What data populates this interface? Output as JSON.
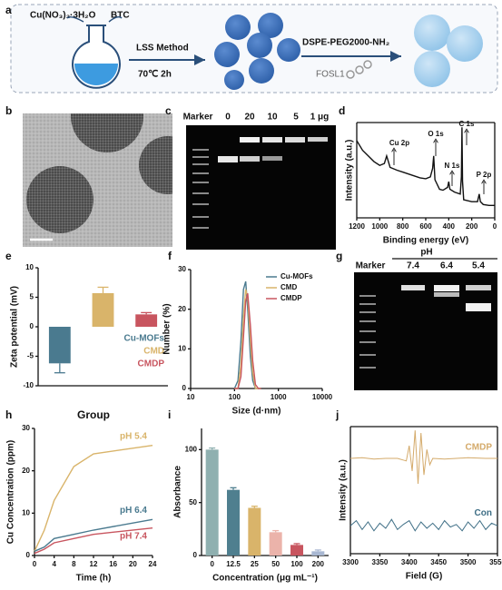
{
  "panel_labels": [
    "a",
    "b",
    "c",
    "d",
    "e",
    "f",
    "g",
    "h",
    "i",
    "j"
  ],
  "schematic": {
    "reagent": "Cu(NO₃)₂·3H₂O",
    "linker": "BTC",
    "step1": "LSS Method",
    "conditions": "70℃   2h",
    "step2": "DSPE-PEG2000-NH₂",
    "cargo": "FOSL1"
  },
  "gel_c": {
    "lanes": [
      "Marker",
      "0",
      "20",
      "10",
      "5",
      "1 μg"
    ]
  },
  "gel_g": {
    "header": "pH",
    "lanes": [
      "Marker",
      "7.4",
      "6.4",
      "5.4"
    ]
  },
  "chart_data": [
    {
      "type": "line",
      "xlabel": "Binding energy (eV)",
      "ylabel": "Intensity (a.u.)",
      "frame": true,
      "xlim": [
        1200,
        0
      ],
      "xticks": [
        1200,
        1000,
        800,
        600,
        400,
        200,
        0
      ],
      "ylim": [
        0,
        10
      ],
      "annotations": [
        "Cu 2p",
        "O 1s",
        "C 1s",
        "N 1s",
        "P 2p"
      ],
      "x": [
        1200,
        1150,
        1100,
        1050,
        1000,
        960,
        940,
        930,
        910,
        850,
        800,
        750,
        700,
        650,
        600,
        560,
        540,
        531,
        520,
        480,
        450,
        410,
        400,
        390,
        350,
        300,
        290,
        285,
        280,
        270,
        200,
        150,
        135,
        125,
        100,
        50,
        0
      ],
      "series": [
        {
          "color": "#111111",
          "values": [
            8.1,
            7.1,
            6.5,
            5.9,
            5.5,
            5.7,
            6.5,
            6.1,
            5.3,
            5.0,
            4.8,
            4.6,
            4.4,
            4.2,
            4.1,
            4.3,
            5.2,
            6.5,
            4.0,
            3.0,
            2.9,
            3.2,
            3.8,
            3.0,
            2.7,
            2.5,
            4.3,
            9.5,
            3.8,
            1.9,
            1.7,
            1.7,
            2.5,
            1.7,
            1.4,
            1.3,
            1.3
          ]
        }
      ]
    },
    {
      "type": "bar",
      "ylabel": "Zeta potential (mV)",
      "category_labels": "legend",
      "categories": [
        "Cu-MOFs",
        "CMD",
        "CMDP"
      ],
      "values": [
        -6.2,
        5.7,
        2.1
      ],
      "errors": [
        1.6,
        1.0,
        0.3
      ],
      "colors": [
        "#4a7a8f",
        "#d9b46a",
        "#c8555f"
      ],
      "ylim": [
        -10,
        10
      ],
      "yticks": [
        -10,
        -5,
        0,
        5,
        10
      ]
    },
    {
      "type": "line",
      "xlabel": "Size (d·nm)",
      "ylabel": "Number (%)",
      "xlog": true,
      "legend": "upper right",
      "xlim": [
        10,
        10000
      ],
      "xticks": [
        10,
        100,
        1000,
        10000
      ],
      "ylim": [
        0,
        30
      ],
      "yticks": [
        0,
        10,
        20,
        30
      ],
      "x": [
        100,
        120,
        140,
        160,
        180,
        200,
        230,
        260,
        300,
        350,
        400
      ],
      "series": [
        {
          "name": "Cu-MOFs",
          "color": "#4a7a8f",
          "values": [
            0,
            2,
            12,
            25,
            27,
            20,
            8,
            2,
            0,
            0,
            0
          ]
        },
        {
          "name": "CMD",
          "color": "#d9b46a",
          "values": [
            0,
            0,
            6,
            18,
            25,
            23,
            12,
            4,
            0,
            0,
            0
          ]
        },
        {
          "name": "CMDP",
          "color": "#c8555f",
          "values": [
            0,
            0,
            3,
            13,
            22,
            24,
            16,
            7,
            1,
            0,
            0
          ]
        }
      ]
    },
    {
      "type": "line",
      "title": "Group",
      "xlabel": "Time (h)",
      "ylabel": "Cu Concentration (ppm)",
      "legend": "inline",
      "xlim": [
        0,
        24
      ],
      "xticks": [
        0,
        4,
        8,
        12,
        16,
        20,
        24
      ],
      "ylim": [
        0,
        30
      ],
      "yticks": [
        0,
        10,
        20,
        30
      ],
      "x": [
        0,
        2,
        4,
        8,
        12,
        24
      ],
      "series": [
        {
          "name": "pH 5.4",
          "color": "#d9b46a",
          "values": [
            1,
            6,
            13,
            21,
            24,
            26
          ]
        },
        {
          "name": "pH 6.4",
          "color": "#4a7a8f",
          "values": [
            1,
            2,
            4,
            5,
            6,
            8.5
          ]
        },
        {
          "name": "pH 7.4",
          "color": "#c8555f",
          "values": [
            0.5,
            1.5,
            3,
            4,
            5,
            6.5
          ]
        }
      ]
    },
    {
      "type": "bar",
      "xlabel": "Concentration (μg mL⁻¹)",
      "ylabel": "Absorbance",
      "category_labels": "axis",
      "categories": [
        "0",
        "12.5",
        "25",
        "50",
        "100",
        "200"
      ],
      "values": [
        100,
        62,
        45,
        22,
        10,
        4
      ],
      "errors": [
        1.5,
        2,
        1.5,
        1.5,
        1.2,
        1.2
      ],
      "colors": [
        "#8fb0b0",
        "#4f7f8f",
        "#d9b46a",
        "#ebb3aa",
        "#c8555f",
        "#a9b8d2"
      ],
      "ylim": [
        0,
        120
      ],
      "yticks": [
        0,
        50,
        100
      ]
    },
    {
      "type": "line",
      "xlabel": "Field (G)",
      "ylabel": "Intensity (a.u.)",
      "frame": true,
      "legend": "inline",
      "xlim": [
        3300,
        3550
      ],
      "xticks": [
        3300,
        3350,
        3400,
        3450,
        3500,
        3550
      ],
      "ylim": [
        0,
        10
      ],
      "series": [
        {
          "name": "CMDP",
          "color": "#d4aa6a",
          "x": [
            3300,
            3320,
            3340,
            3360,
            3380,
            3395,
            3400,
            3405,
            3410,
            3415,
            3420,
            3425,
            3430,
            3435,
            3440,
            3460,
            3500,
            3530,
            3550
          ],
          "values": [
            7.5,
            7.55,
            7.45,
            7.5,
            7.5,
            7.3,
            8.5,
            6.5,
            9.7,
            5.5,
            9.5,
            6.2,
            8.2,
            7.0,
            7.5,
            7.45,
            7.55,
            7.5,
            7.5
          ]
        },
        {
          "name": "Con",
          "color": "#3f6f86",
          "x": [
            3300,
            3310,
            3320,
            3330,
            3340,
            3350,
            3360,
            3370,
            3380,
            3390,
            3400,
            3410,
            3420,
            3430,
            3440,
            3450,
            3460,
            3470,
            3480,
            3490,
            3500,
            3510,
            3520,
            3530,
            3540,
            3550
          ],
          "values": [
            2.2,
            2.6,
            1.9,
            2.5,
            1.8,
            2.4,
            2.0,
            2.7,
            1.9,
            2.3,
            2.6,
            1.8,
            2.5,
            2.0,
            2.4,
            1.9,
            2.6,
            2.1,
            2.3,
            1.8,
            2.5,
            2.0,
            2.6,
            1.9,
            2.4,
            2.2
          ]
        }
      ]
    }
  ]
}
